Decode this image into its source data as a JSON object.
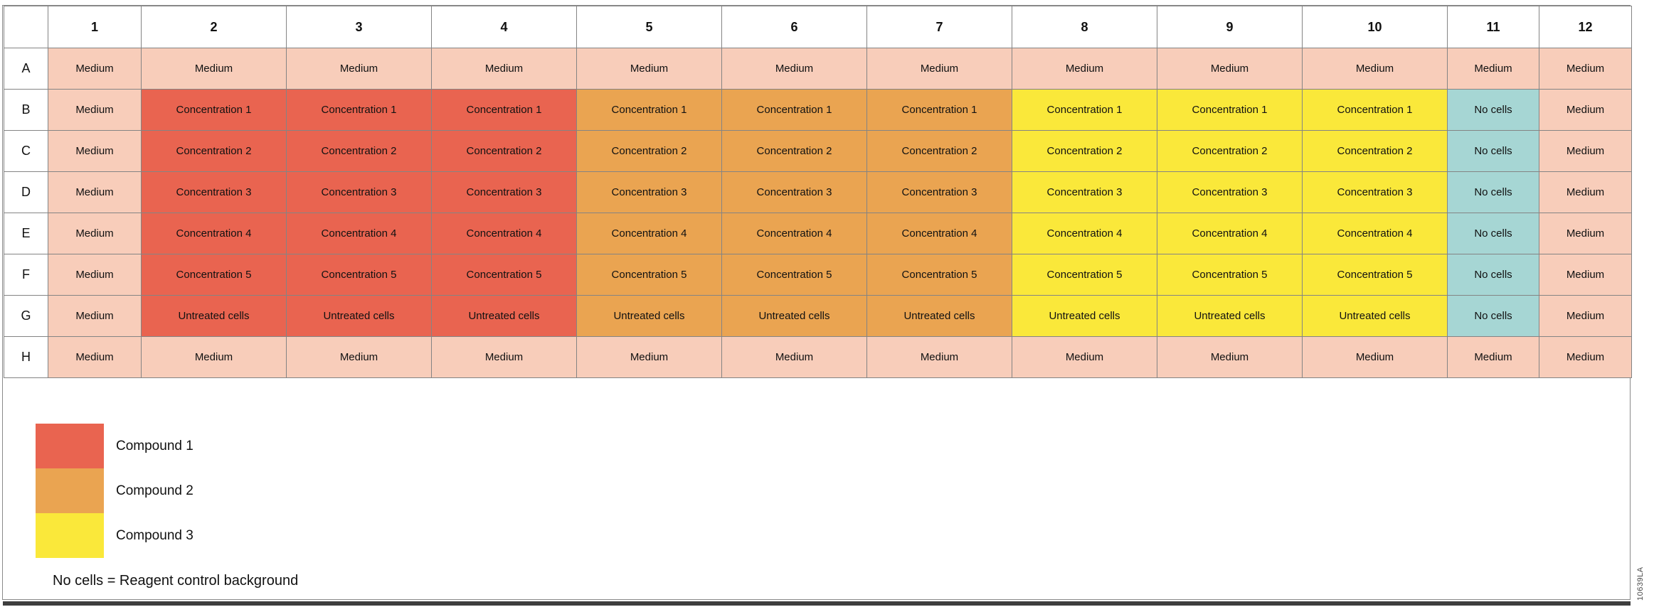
{
  "colors": {
    "medium": "#F8CDBA",
    "c1": "#E96450",
    "c2": "#EAA451",
    "c3": "#FAE83A",
    "nocells": "#A6D6D4",
    "grid_line": "#848484",
    "bottom_bar": "#3e3e3e"
  },
  "plate": {
    "column_headers": [
      "1",
      "2",
      "3",
      "4",
      "5",
      "6",
      "7",
      "8",
      "9",
      "10",
      "11",
      "12"
    ],
    "row_headers": [
      "A",
      "B",
      "C",
      "D",
      "E",
      "F",
      "G",
      "H"
    ],
    "rows": [
      [
        {
          "label": "Medium",
          "type": "medium"
        },
        {
          "label": "Medium",
          "type": "medium"
        },
        {
          "label": "Medium",
          "type": "medium"
        },
        {
          "label": "Medium",
          "type": "medium"
        },
        {
          "label": "Medium",
          "type": "medium"
        },
        {
          "label": "Medium",
          "type": "medium"
        },
        {
          "label": "Medium",
          "type": "medium"
        },
        {
          "label": "Medium",
          "type": "medium"
        },
        {
          "label": "Medium",
          "type": "medium"
        },
        {
          "label": "Medium",
          "type": "medium"
        },
        {
          "label": "Medium",
          "type": "medium"
        },
        {
          "label": "Medium",
          "type": "medium"
        }
      ],
      [
        {
          "label": "Medium",
          "type": "medium"
        },
        {
          "label": "Concentration 1",
          "type": "c1"
        },
        {
          "label": "Concentration 1",
          "type": "c1"
        },
        {
          "label": "Concentration 1",
          "type": "c1"
        },
        {
          "label": "Concentration 1",
          "type": "c2"
        },
        {
          "label": "Concentration 1",
          "type": "c2"
        },
        {
          "label": "Concentration 1",
          "type": "c2"
        },
        {
          "label": "Concentration 1",
          "type": "c3"
        },
        {
          "label": "Concentration 1",
          "type": "c3"
        },
        {
          "label": "Concentration 1",
          "type": "c3"
        },
        {
          "label": "No cells",
          "type": "nocells"
        },
        {
          "label": "Medium",
          "type": "medium"
        }
      ],
      [
        {
          "label": "Medium",
          "type": "medium"
        },
        {
          "label": "Concentration 2",
          "type": "c1"
        },
        {
          "label": "Concentration 2",
          "type": "c1"
        },
        {
          "label": "Concentration 2",
          "type": "c1"
        },
        {
          "label": "Concentration 2",
          "type": "c2"
        },
        {
          "label": "Concentration 2",
          "type": "c2"
        },
        {
          "label": "Concentration 2",
          "type": "c2"
        },
        {
          "label": "Concentration 2",
          "type": "c3"
        },
        {
          "label": "Concentration 2",
          "type": "c3"
        },
        {
          "label": "Concentration 2",
          "type": "c3"
        },
        {
          "label": "No cells",
          "type": "nocells"
        },
        {
          "label": "Medium",
          "type": "medium"
        }
      ],
      [
        {
          "label": "Medium",
          "type": "medium"
        },
        {
          "label": "Concentration 3",
          "type": "c1"
        },
        {
          "label": "Concentration 3",
          "type": "c1"
        },
        {
          "label": "Concentration 3",
          "type": "c1"
        },
        {
          "label": "Concentration 3",
          "type": "c2"
        },
        {
          "label": "Concentration 3",
          "type": "c2"
        },
        {
          "label": "Concentration 3",
          "type": "c2"
        },
        {
          "label": "Concentration 3",
          "type": "c3"
        },
        {
          "label": "Concentration 3",
          "type": "c3"
        },
        {
          "label": "Concentration 3",
          "type": "c3"
        },
        {
          "label": "No cells",
          "type": "nocells"
        },
        {
          "label": "Medium",
          "type": "medium"
        }
      ],
      [
        {
          "label": "Medium",
          "type": "medium"
        },
        {
          "label": "Concentration 4",
          "type": "c1"
        },
        {
          "label": "Concentration 4",
          "type": "c1"
        },
        {
          "label": "Concentration 4",
          "type": "c1"
        },
        {
          "label": "Concentration 4",
          "type": "c2"
        },
        {
          "label": "Concentration 4",
          "type": "c2"
        },
        {
          "label": "Concentration 4",
          "type": "c2"
        },
        {
          "label": "Concentration 4",
          "type": "c3"
        },
        {
          "label": "Concentration 4",
          "type": "c3"
        },
        {
          "label": "Concentration 4",
          "type": "c3"
        },
        {
          "label": "No cells",
          "type": "nocells"
        },
        {
          "label": "Medium",
          "type": "medium"
        }
      ],
      [
        {
          "label": "Medium",
          "type": "medium"
        },
        {
          "label": "Concentration 5",
          "type": "c1"
        },
        {
          "label": "Concentration 5",
          "type": "c1"
        },
        {
          "label": "Concentration 5",
          "type": "c1"
        },
        {
          "label": "Concentration 5",
          "type": "c2"
        },
        {
          "label": "Concentration 5",
          "type": "c2"
        },
        {
          "label": "Concentration 5",
          "type": "c2"
        },
        {
          "label": "Concentration 5",
          "type": "c3"
        },
        {
          "label": "Concentration 5",
          "type": "c3"
        },
        {
          "label": "Concentration 5",
          "type": "c3"
        },
        {
          "label": "No cells",
          "type": "nocells"
        },
        {
          "label": "Medium",
          "type": "medium"
        }
      ],
      [
        {
          "label": "Medium",
          "type": "medium"
        },
        {
          "label": "Untreated cells",
          "type": "c1"
        },
        {
          "label": "Untreated cells",
          "type": "c1"
        },
        {
          "label": "Untreated cells",
          "type": "c1"
        },
        {
          "label": "Untreated cells",
          "type": "c2"
        },
        {
          "label": "Untreated cells",
          "type": "c2"
        },
        {
          "label": "Untreated cells",
          "type": "c2"
        },
        {
          "label": "Untreated cells",
          "type": "c3"
        },
        {
          "label": "Untreated cells",
          "type": "c3"
        },
        {
          "label": "Untreated cells",
          "type": "c3"
        },
        {
          "label": "No cells",
          "type": "nocells"
        },
        {
          "label": "Medium",
          "type": "medium"
        }
      ],
      [
        {
          "label": "Medium",
          "type": "medium"
        },
        {
          "label": "Medium",
          "type": "medium"
        },
        {
          "label": "Medium",
          "type": "medium"
        },
        {
          "label": "Medium",
          "type": "medium"
        },
        {
          "label": "Medium",
          "type": "medium"
        },
        {
          "label": "Medium",
          "type": "medium"
        },
        {
          "label": "Medium",
          "type": "medium"
        },
        {
          "label": "Medium",
          "type": "medium"
        },
        {
          "label": "Medium",
          "type": "medium"
        },
        {
          "label": "Medium",
          "type": "medium"
        },
        {
          "label": "Medium",
          "type": "medium"
        },
        {
          "label": "Medium",
          "type": "medium"
        }
      ]
    ]
  },
  "legend": {
    "items": [
      {
        "label": "Compound 1",
        "type": "c1",
        "color": "#E96450"
      },
      {
        "label": "Compound 2",
        "type": "c2",
        "color": "#EAA451"
      },
      {
        "label": "Compound 3",
        "type": "c3",
        "color": "#FAE83A"
      }
    ],
    "note": "No cells = Reagent control background"
  },
  "figure_id": "10639LA"
}
